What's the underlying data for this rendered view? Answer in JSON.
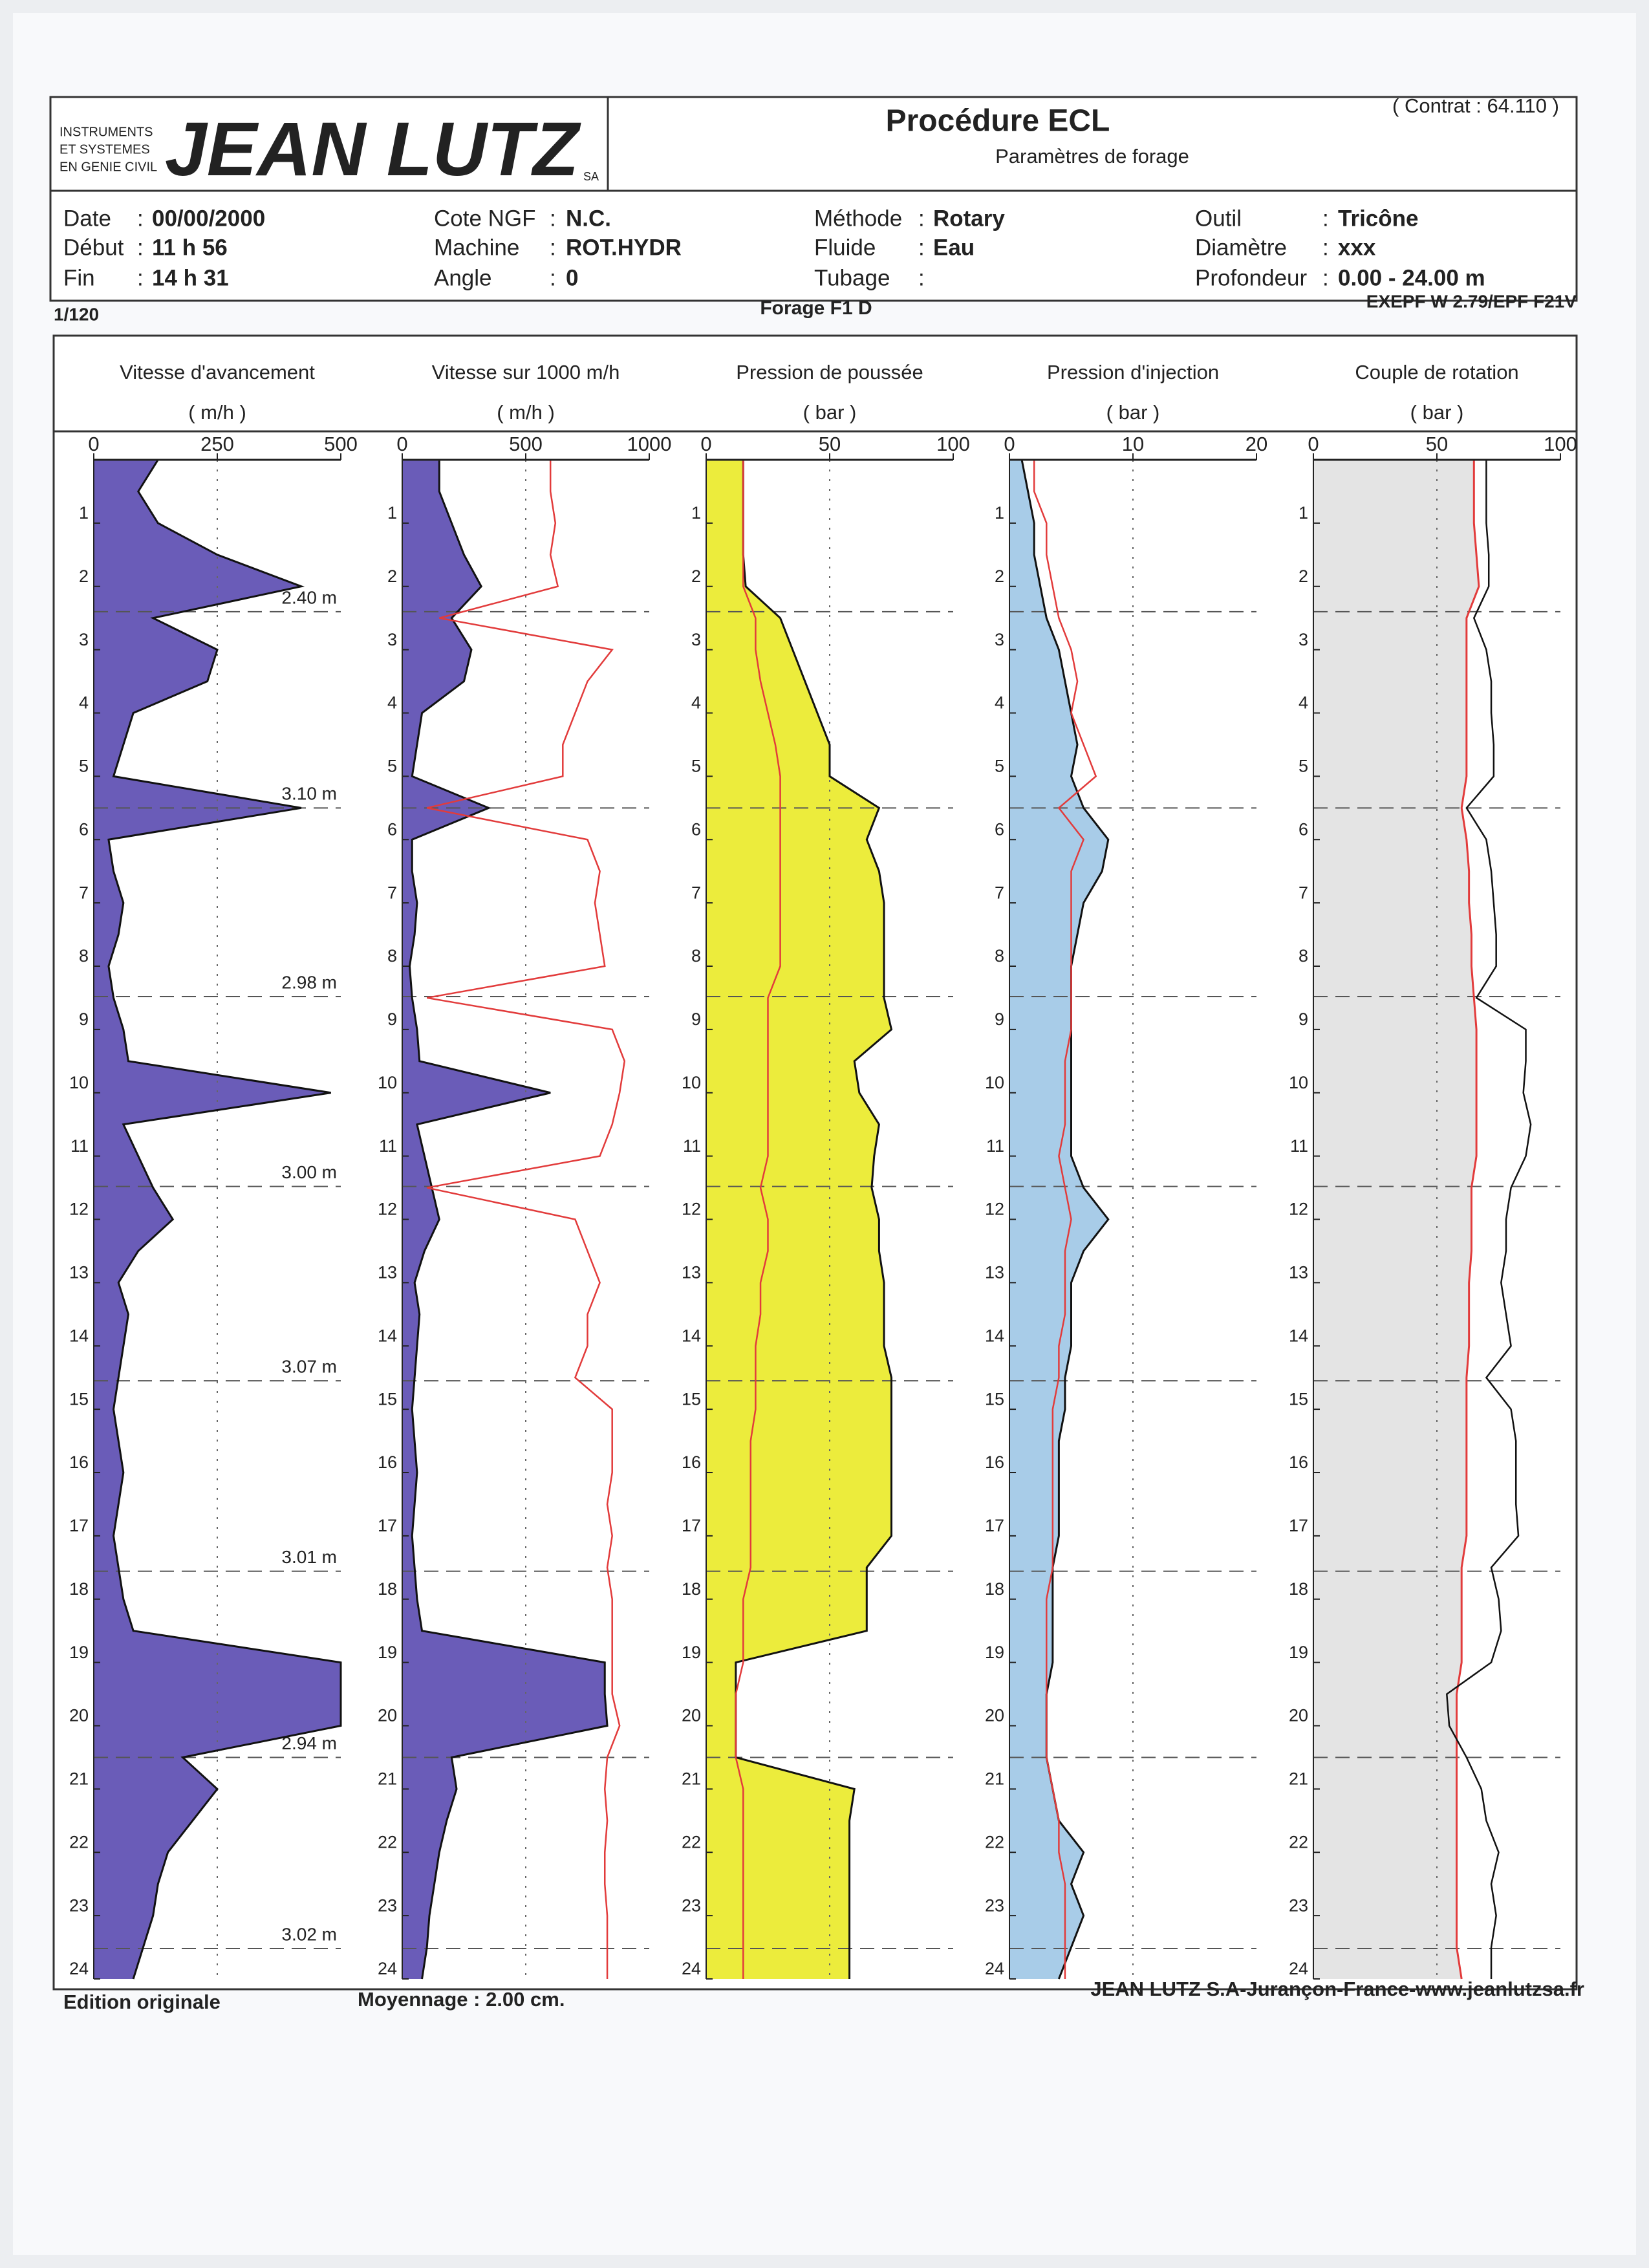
{
  "header": {
    "logo": {
      "small": [
        "INSTRUMENTS",
        "ET SYSTEMES",
        "EN GENIE CIVIL"
      ],
      "brand": "JEAN LUTZ",
      "suffix": "SA"
    },
    "title": "Procédure ECL",
    "subtitle": "Paramètres de forage",
    "contract": "( Contrat : 64.110 )"
  },
  "info": [
    [
      {
        "label": "Date",
        "sep": ":",
        "value": "00/00/2000"
      },
      {
        "label": "Début",
        "sep": ":",
        "value": "11 h 56"
      },
      {
        "label": "Fin",
        "sep": ":",
        "value": "14 h 31"
      }
    ],
    [
      {
        "label": "Cote NGF",
        "sep": ":",
        "value": "N.C."
      },
      {
        "label": "Machine",
        "sep": ":",
        "value": "ROT.HYDR"
      },
      {
        "label": "Angle",
        "sep": ":",
        "value": "0"
      }
    ],
    [
      {
        "label": "Méthode",
        "sep": ":",
        "value": "Rotary"
      },
      {
        "label": "Fluide",
        "sep": ":",
        "value": "Eau"
      },
      {
        "label": "Tubage",
        "sep": ":"
      }
    ],
    [
      {
        "label": "Outil",
        "sep": ":",
        "value": "Tricône"
      },
      {
        "label": "Diamètre",
        "sep": ":",
        "value": "xxx"
      },
      {
        "label": "Profondeur",
        "sep": ":",
        "value": "0.00 - 24.00 m"
      }
    ]
  ],
  "subheader": {
    "scale": "1/120",
    "name": "Forage F1 D",
    "version": "EXEPF W 2.79/EPF F21V"
  },
  "rods": [
    {
      "depth": 2.4,
      "label": "2.40 m"
    },
    {
      "depth": 5.5,
      "label": "3.10 m"
    },
    {
      "depth": 8.48,
      "label": "2.98 m"
    },
    {
      "depth": 11.48,
      "label": "3.00 m"
    },
    {
      "depth": 14.55,
      "label": "3.07 m"
    },
    {
      "depth": 17.56,
      "label": "3.01 m"
    },
    {
      "depth": 20.5,
      "label": "2.94 m"
    },
    {
      "depth": 23.52,
      "label": "3.02 m"
    }
  ],
  "chart_data": [
    {
      "type": "area",
      "title": "Vitesse d'avancement",
      "unit": "( m/h )",
      "ylim": [
        0,
        500
      ],
      "yticks": [
        0,
        250,
        500
      ],
      "xlim": [
        0,
        24
      ],
      "xticks": [
        1,
        2,
        3,
        4,
        5,
        6,
        7,
        8,
        9,
        10,
        11,
        12,
        13,
        14,
        15,
        16,
        17,
        18,
        19,
        20,
        21,
        22,
        23,
        24
      ],
      "grid": true,
      "x": [
        0,
        0.5,
        1,
        1.5,
        2,
        2.5,
        3,
        3.5,
        4,
        4.5,
        5,
        5.5,
        6,
        6.5,
        7,
        7.5,
        8,
        8.5,
        9,
        9.5,
        10,
        10.5,
        11,
        11.5,
        12,
        12.5,
        13,
        13.5,
        14,
        14.5,
        15,
        15.5,
        16,
        16.5,
        17,
        17.5,
        18,
        18.5,
        19,
        19.5,
        20,
        20.5,
        21,
        21.5,
        22,
        22.5,
        23,
        23.5,
        24
      ],
      "series": [
        {
          "color": "#111111",
          "fill": "#6a5cb8",
          "values": [
            130,
            90,
            130,
            250,
            420,
            120,
            250,
            230,
            80,
            60,
            40,
            420,
            30,
            40,
            60,
            50,
            30,
            40,
            60,
            70,
            480,
            60,
            90,
            120,
            160,
            90,
            50,
            70,
            60,
            50,
            40,
            50,
            60,
            50,
            40,
            50,
            60,
            80,
            500,
            500,
            500,
            180,
            250,
            200,
            150,
            130,
            120,
            100,
            80
          ]
        }
      ]
    },
    {
      "type": "area",
      "title": "Vitesse sur 1000 m/h",
      "unit": "( m/h )",
      "ylim": [
        0,
        1000
      ],
      "yticks": [
        0,
        500,
        1000
      ],
      "xlim": [
        0,
        24
      ],
      "xticks": [
        1,
        2,
        3,
        4,
        5,
        6,
        7,
        8,
        9,
        10,
        11,
        12,
        13,
        14,
        15,
        16,
        17,
        18,
        19,
        20,
        21,
        22,
        23,
        24
      ],
      "grid": true,
      "x": [
        0,
        0.5,
        1,
        1.5,
        2,
        2.5,
        3,
        3.5,
        4,
        4.5,
        5,
        5.5,
        6,
        6.5,
        7,
        7.5,
        8,
        8.5,
        9,
        9.5,
        10,
        10.5,
        11,
        11.5,
        12,
        12.5,
        13,
        13.5,
        14,
        14.5,
        15,
        15.5,
        16,
        16.5,
        17,
        17.5,
        18,
        18.5,
        19,
        19.5,
        20,
        20.5,
        21,
        21.5,
        22,
        22.5,
        23,
        23.5,
        24
      ],
      "series": [
        {
          "color": "#111111",
          "fill": "#6a5cb8",
          "values": [
            150,
            150,
            200,
            250,
            320,
            200,
            280,
            250,
            80,
            60,
            40,
            350,
            40,
            40,
            60,
            50,
            30,
            40,
            60,
            70,
            600,
            60,
            90,
            120,
            150,
            90,
            50,
            70,
            60,
            50,
            40,
            50,
            60,
            50,
            40,
            50,
            60,
            80,
            820,
            820,
            830,
            200,
            220,
            180,
            150,
            130,
            110,
            100,
            80
          ]
        },
        {
          "color": "#e23b3b",
          "values": [
            600,
            600,
            620,
            600,
            630,
            150,
            850,
            750,
            700,
            650,
            650,
            100,
            750,
            800,
            780,
            800,
            820,
            100,
            850,
            900,
            880,
            850,
            800,
            100,
            700,
            750,
            800,
            750,
            750,
            700,
            850,
            850,
            850,
            830,
            850,
            830,
            850,
            850,
            850,
            850,
            880,
            830,
            820,
            830,
            820,
            820,
            830,
            830,
            830
          ]
        }
      ]
    },
    {
      "type": "area",
      "title": "Pression de poussée",
      "unit": "( bar )",
      "ylim": [
        0,
        100
      ],
      "yticks": [
        0,
        50,
        100
      ],
      "xlim": [
        0,
        24
      ],
      "xticks": [
        1,
        2,
        3,
        4,
        5,
        6,
        7,
        8,
        9,
        10,
        11,
        12,
        13,
        14,
        15,
        16,
        17,
        18,
        19,
        20,
        21,
        22,
        23,
        24
      ],
      "grid": true,
      "x": [
        0,
        0.5,
        1,
        1.5,
        2,
        2.5,
        3,
        3.5,
        4,
        4.5,
        5,
        5.5,
        6,
        6.5,
        7,
        7.5,
        8,
        8.5,
        9,
        9.5,
        10,
        10.5,
        11,
        11.5,
        12,
        12.5,
        13,
        13.5,
        14,
        14.5,
        15,
        15.5,
        16,
        16.5,
        17,
        17.5,
        18,
        18.5,
        19,
        19.5,
        20,
        20.5,
        21,
        21.5,
        22,
        22.5,
        23,
        23.5,
        24
      ],
      "series": [
        {
          "color": "#111111",
          "fill": "#ecec3c",
          "values": [
            15,
            15,
            15,
            15,
            16,
            30,
            35,
            40,
            45,
            50,
            50,
            70,
            65,
            70,
            72,
            72,
            72,
            72,
            75,
            60,
            62,
            70,
            68,
            67,
            70,
            70,
            72,
            72,
            72,
            75,
            75,
            75,
            75,
            75,
            75,
            65,
            65,
            65,
            12,
            12,
            12,
            12,
            60,
            58,
            58,
            58,
            58,
            58,
            58
          ]
        },
        {
          "color": "#e23b3b",
          "values": [
            15,
            15,
            15,
            15,
            15,
            20,
            20,
            22,
            25,
            28,
            30,
            30,
            30,
            30,
            30,
            30,
            30,
            25,
            25,
            25,
            25,
            25,
            25,
            22,
            25,
            25,
            22,
            22,
            20,
            20,
            20,
            18,
            18,
            18,
            18,
            18,
            15,
            15,
            15,
            12,
            12,
            12,
            15,
            15,
            15,
            15,
            15,
            15,
            15
          ]
        }
      ]
    },
    {
      "type": "area",
      "title": "Pression d'injection",
      "unit": "( bar )",
      "ylim": [
        0,
        20
      ],
      "yticks": [
        0,
        10,
        20
      ],
      "xlim": [
        0,
        24
      ],
      "xticks": [
        1,
        2,
        3,
        4,
        5,
        6,
        7,
        8,
        9,
        10,
        11,
        12,
        13,
        14,
        15,
        16,
        17,
        18,
        19,
        20,
        21,
        22,
        23,
        24
      ],
      "grid": true,
      "x": [
        0,
        0.5,
        1,
        1.5,
        2,
        2.5,
        3,
        3.5,
        4,
        4.5,
        5,
        5.5,
        6,
        6.5,
        7,
        7.5,
        8,
        8.5,
        9,
        9.5,
        10,
        10.5,
        11,
        11.5,
        12,
        12.5,
        13,
        13.5,
        14,
        14.5,
        15,
        15.5,
        16,
        16.5,
        17,
        17.5,
        18,
        18.5,
        19,
        19.5,
        20,
        20.5,
        21,
        21.5,
        22,
        22.5,
        23,
        23.5,
        24
      ],
      "series": [
        {
          "color": "#111111",
          "fill": "#a8cce8",
          "values": [
            1,
            1.5,
            2,
            2,
            2.5,
            3,
            4,
            4.5,
            5,
            5.5,
            5,
            6,
            8,
            7.5,
            6,
            5.5,
            5,
            5,
            5,
            5,
            5,
            5,
            5,
            6,
            8,
            6,
            5,
            5,
            5,
            4.5,
            4.5,
            4,
            4,
            4,
            4,
            3.5,
            3.5,
            3.5,
            3.5,
            3,
            3,
            3,
            3.5,
            4,
            6,
            5,
            6,
            5,
            4
          ]
        },
        {
          "color": "#e23b3b",
          "values": [
            2,
            2,
            3,
            3,
            3.5,
            4,
            5,
            5.5,
            5,
            6,
            7,
            4,
            6,
            5,
            5,
            5,
            5,
            5,
            5,
            4.5,
            4.5,
            4.5,
            4,
            4.5,
            5,
            4.5,
            4.5,
            4.5,
            4,
            4,
            3.5,
            3.5,
            3.5,
            3.5,
            3.5,
            3.5,
            3,
            3,
            3,
            3,
            3,
            3,
            3.5,
            4,
            4,
            4.5,
            4.5,
            4.5,
            4.5
          ]
        }
      ]
    },
    {
      "type": "area",
      "title": "Couple de rotation",
      "unit": "( bar )",
      "ylim": [
        0,
        100
      ],
      "yticks": [
        0,
        50,
        100
      ],
      "xlim": [
        0,
        24
      ],
      "xticks": [
        1,
        2,
        3,
        4,
        5,
        6,
        7,
        8,
        9,
        10,
        11,
        12,
        13,
        14,
        15,
        16,
        17,
        18,
        19,
        20,
        21,
        22,
        23,
        24
      ],
      "grid": true,
      "x": [
        0,
        0.5,
        1,
        1.5,
        2,
        2.5,
        3,
        3.5,
        4,
        4.5,
        5,
        5.5,
        6,
        6.5,
        7,
        7.5,
        8,
        8.5,
        9,
        9.5,
        10,
        10.5,
        11,
        11.5,
        12,
        12.5,
        13,
        13.5,
        14,
        14.5,
        15,
        15.5,
        16,
        16.5,
        17,
        17.5,
        18,
        18.5,
        19,
        19.5,
        20,
        20.5,
        21,
        21.5,
        22,
        22.5,
        23,
        23.5,
        24
      ],
      "series": [
        {
          "color": "#e23b3b",
          "fill": "#e4e4e4",
          "values": [
            65,
            65,
            65,
            66,
            67,
            62,
            62,
            62,
            62,
            62,
            62,
            60,
            62,
            63,
            63,
            64,
            64,
            65,
            66,
            66,
            66,
            66,
            66,
            64,
            64,
            64,
            63,
            63,
            63,
            62,
            62,
            62,
            62,
            62,
            62,
            60,
            60,
            60,
            60,
            58,
            58,
            58,
            58,
            58,
            58,
            58,
            58,
            58,
            60
          ]
        },
        {
          "color": "#111111",
          "values": [
            70,
            70,
            70,
            71,
            71,
            65,
            70,
            72,
            72,
            73,
            73,
            62,
            70,
            72,
            73,
            74,
            74,
            66,
            86,
            86,
            85,
            88,
            86,
            80,
            78,
            78,
            76,
            78,
            80,
            70,
            80,
            82,
            82,
            82,
            83,
            72,
            75,
            76,
            72,
            54,
            55,
            62,
            68,
            70,
            75,
            72,
            74,
            72,
            72
          ]
        }
      ]
    }
  ],
  "footer": {
    "edition": "Edition originale",
    "averaging": "Moyennage : 2.00 cm.",
    "company": "JEAN LUTZ S.A-Jurançon-France-www.jeanlutzsa.fr"
  }
}
